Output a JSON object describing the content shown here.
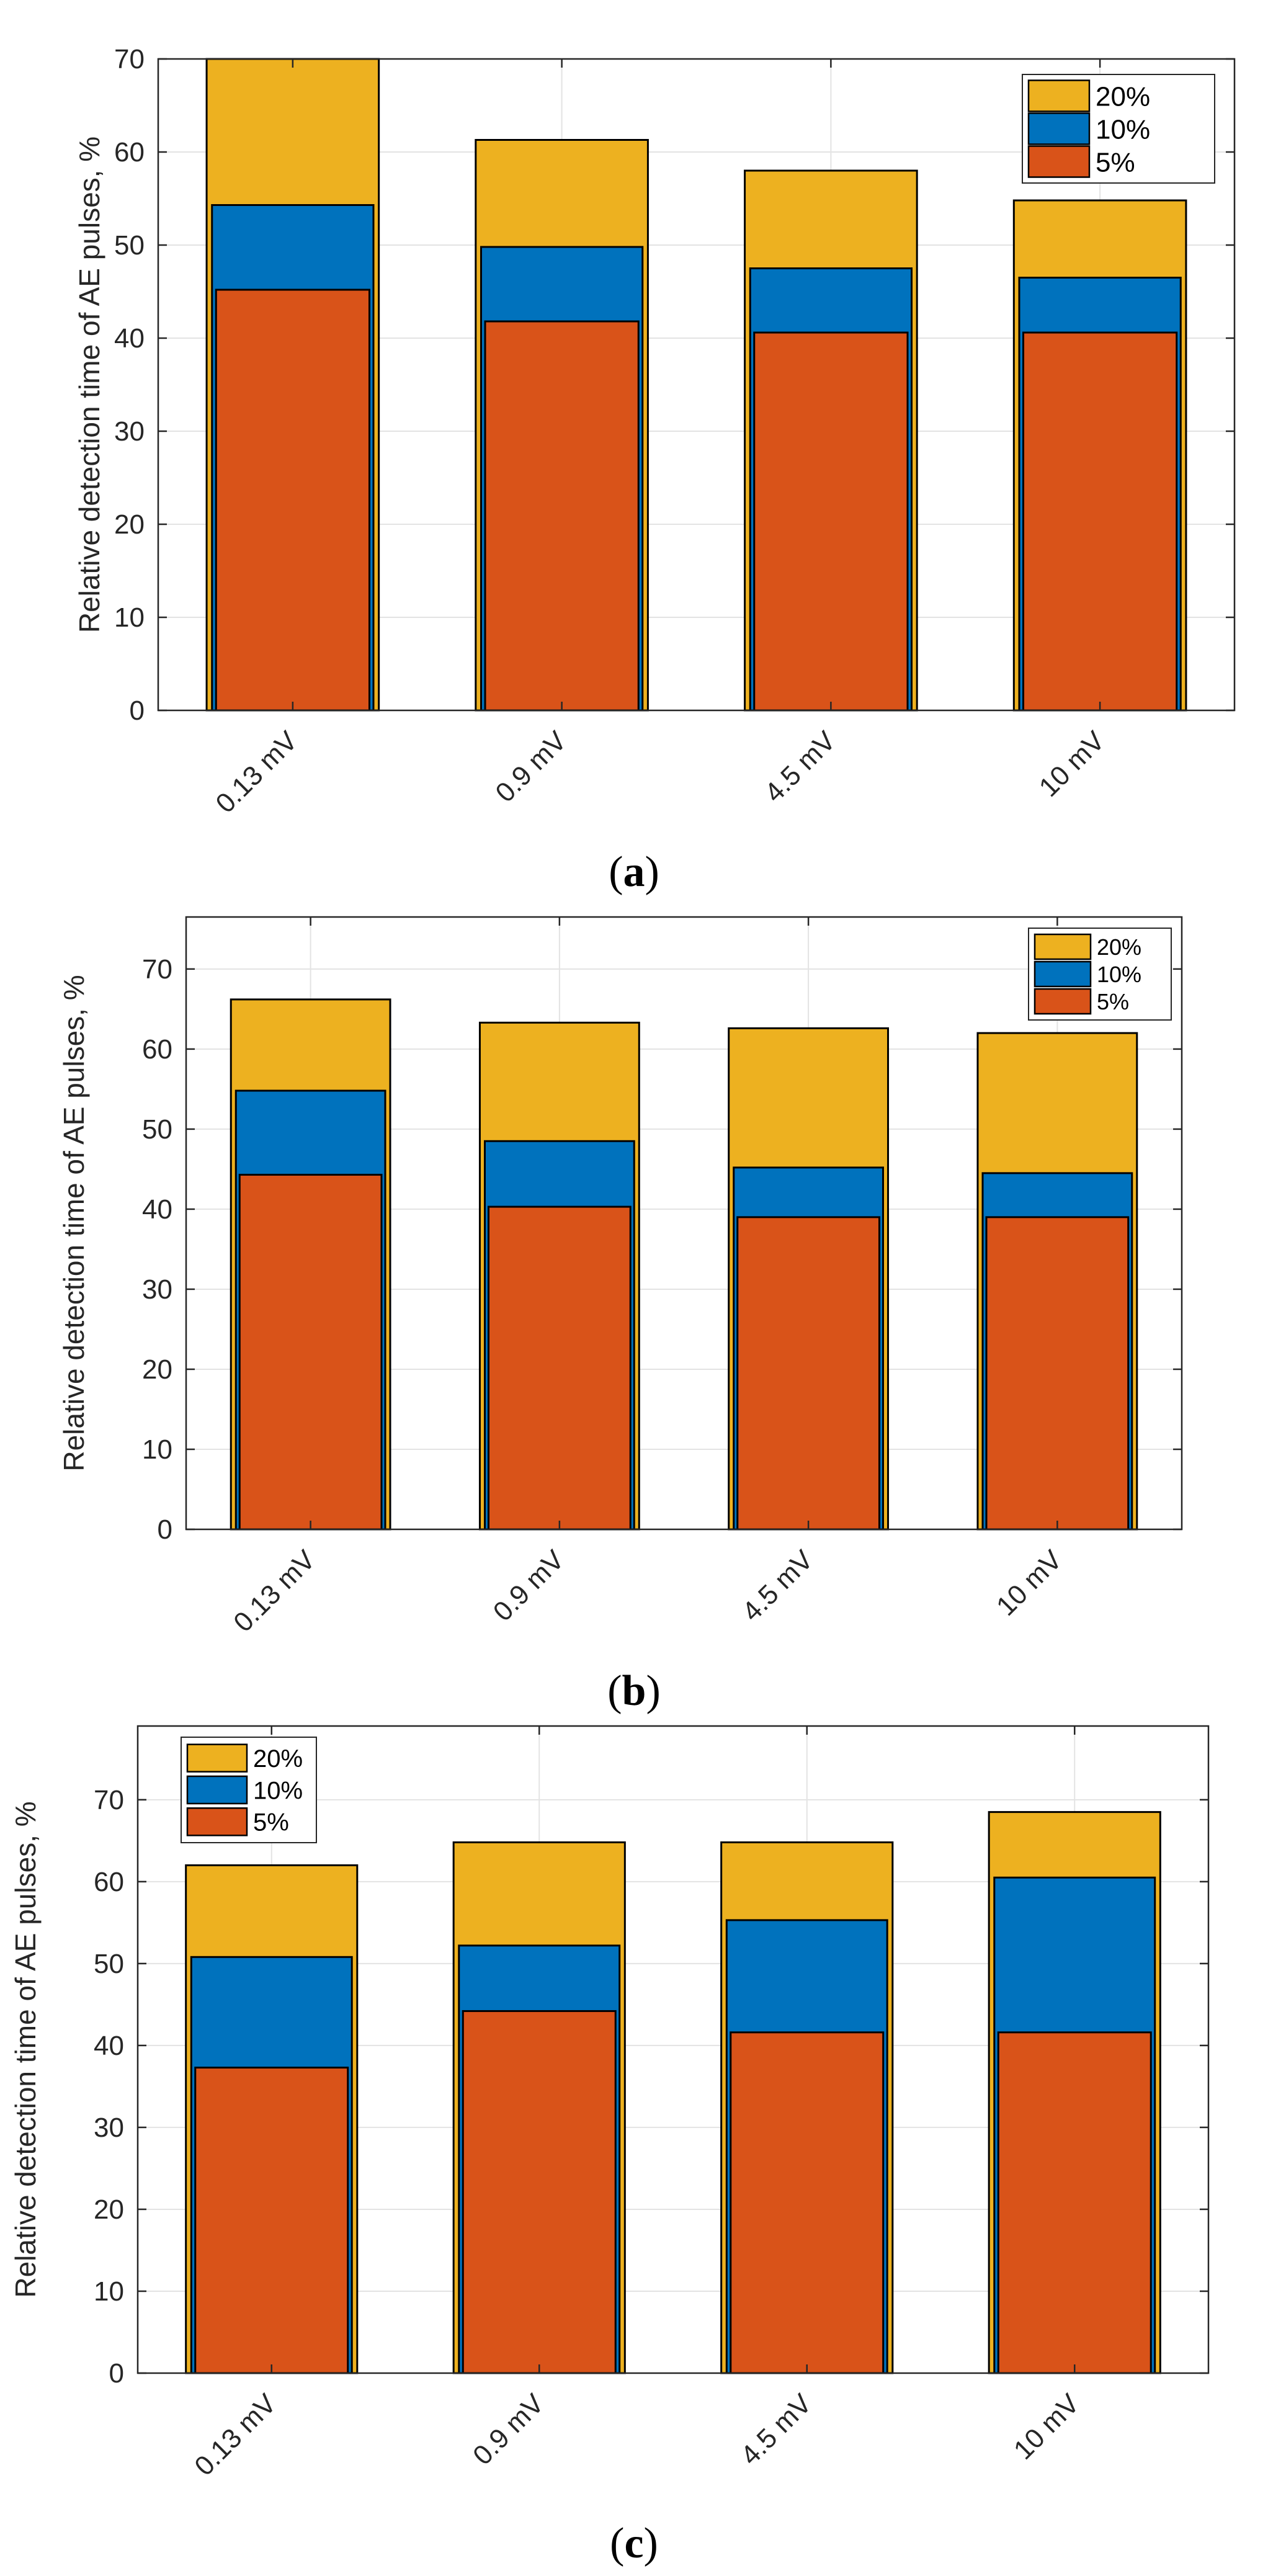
{
  "colors": {
    "s20": "#EDB120",
    "s10": "#0072BD",
    "s5": "#D95319",
    "grid": "#E3E3E3",
    "axis": "#262626"
  },
  "chart_data": [
    {
      "type": "bar",
      "panel_label": "a",
      "caption_open": "(",
      "caption_close": ")",
      "categories": [
        "0.13 mV",
        "0.9 mV",
        "4.5 mV",
        "10 mV"
      ],
      "ylabel": "Relative detection time of AE pulses, %",
      "xlabel": "",
      "ylim": [
        0,
        70
      ],
      "yticks": [
        0,
        10,
        20,
        30,
        40,
        50,
        60,
        70
      ],
      "grid": true,
      "legend_position": "top-right",
      "series": [
        {
          "name": "20%",
          "color_key": "s20",
          "values": [
            70.0,
            61.3,
            58.0,
            54.8
          ]
        },
        {
          "name": "10%",
          "color_key": "s10",
          "values": [
            54.3,
            49.8,
            47.5,
            46.5
          ]
        },
        {
          "name": "5%",
          "color_key": "s5",
          "values": [
            45.2,
            41.8,
            40.6,
            40.6
          ]
        }
      ]
    },
    {
      "type": "bar",
      "panel_label": "b",
      "caption_open": "(",
      "caption_close": ")",
      "categories": [
        "0.13 mV",
        "0.9 mV",
        "4.5 mV",
        "10 mV"
      ],
      "ylabel": "Relative detection time of AE pulses, %",
      "xlabel": "",
      "ylim": [
        0,
        76.5
      ],
      "yticks": [
        0,
        10,
        20,
        30,
        40,
        50,
        60,
        70
      ],
      "grid": true,
      "legend_position": "top-right",
      "series": [
        {
          "name": "20%",
          "color_key": "s20",
          "values": [
            66.2,
            63.3,
            62.6,
            62.0
          ]
        },
        {
          "name": "10%",
          "color_key": "s10",
          "values": [
            54.8,
            48.5,
            45.2,
            44.5
          ]
        },
        {
          "name": "5%",
          "color_key": "s5",
          "values": [
            44.3,
            40.3,
            39.0,
            39.0
          ]
        }
      ]
    },
    {
      "type": "bar",
      "panel_label": "c",
      "caption_open": "(",
      "caption_close": ")",
      "categories": [
        "0.13 mV",
        "0.9 mV",
        "4.5 mV",
        "10 mV"
      ],
      "ylabel": "Relative detection time of AE pulses, %",
      "xlabel": "",
      "ylim": [
        0,
        79
      ],
      "yticks": [
        0,
        10,
        20,
        30,
        40,
        50,
        60,
        70
      ],
      "grid": true,
      "legend_position": "top-left",
      "series": [
        {
          "name": "20%",
          "color_key": "s20",
          "values": [
            62.0,
            64.8,
            64.8,
            68.5
          ]
        },
        {
          "name": "10%",
          "color_key": "s10",
          "values": [
            50.8,
            52.2,
            55.3,
            60.5
          ]
        },
        {
          "name": "5%",
          "color_key": "s5",
          "values": [
            37.3,
            44.2,
            41.6,
            41.6
          ]
        }
      ]
    }
  ]
}
